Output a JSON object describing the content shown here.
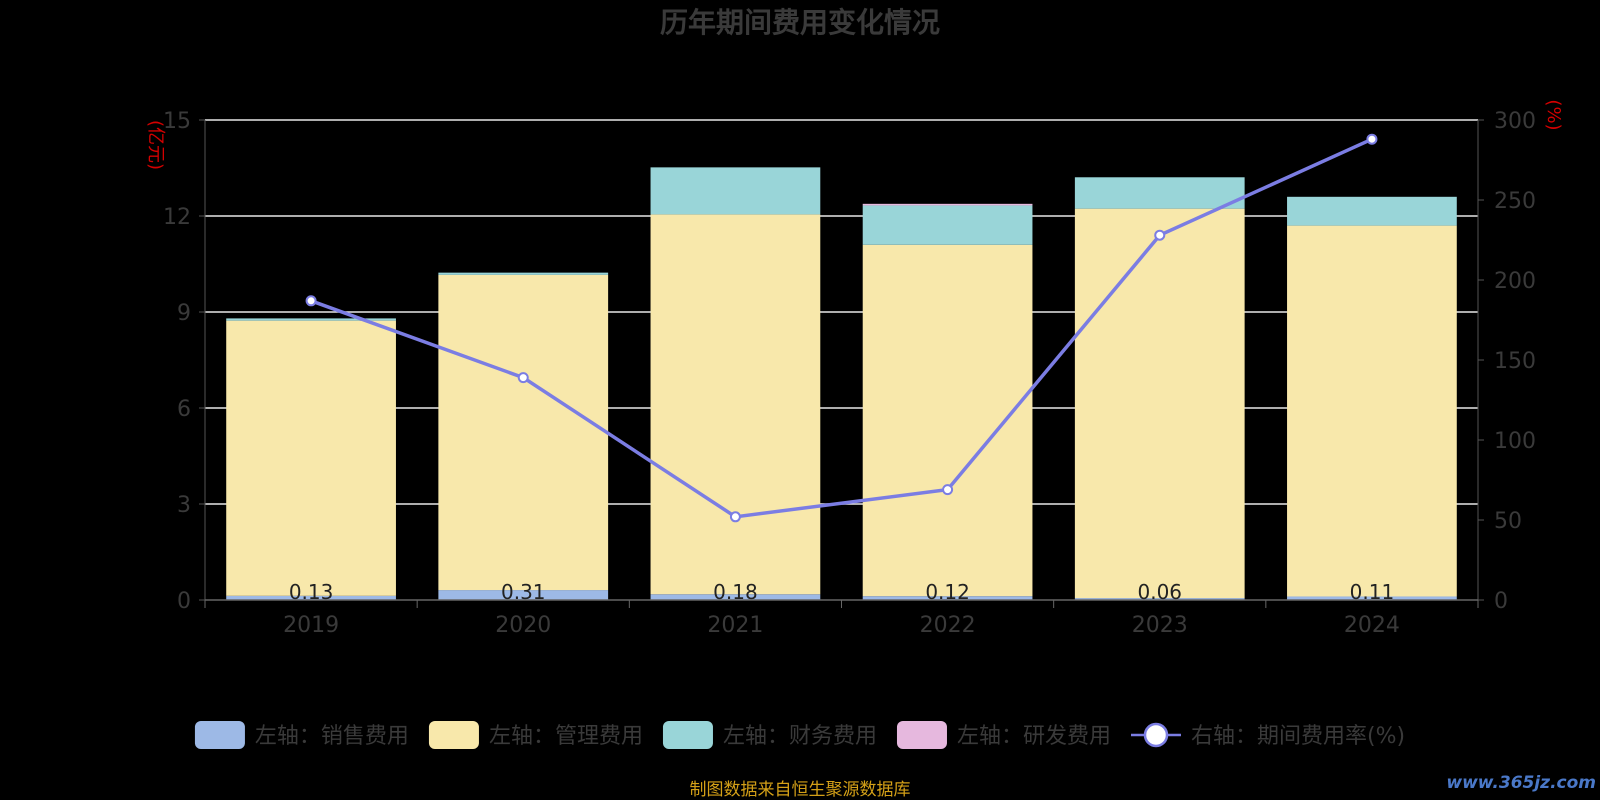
{
  "chart_data": {
    "type": "bar",
    "title": "历年期间费用变化情况",
    "categories": [
      "2019",
      "2020",
      "2021",
      "2022",
      "2023",
      "2024"
    ],
    "left_axis": {
      "unit": "(亿元)",
      "ylim": [
        0,
        15
      ],
      "ticks": [
        "0",
        "3",
        "6",
        "9",
        "12",
        "15"
      ]
    },
    "right_axis": {
      "unit": "(%)",
      "ylim": [
        0,
        300
      ],
      "ticks": [
        "0",
        "50",
        "100",
        "150",
        "200",
        "250",
        "300"
      ]
    },
    "series": [
      {
        "name": "左轴：销售费用",
        "kind": "bar",
        "stack": "left",
        "color": "#9db9e6",
        "values": [
          0.13,
          0.31,
          0.18,
          0.12,
          0.06,
          0.11
        ],
        "labels": [
          "0.13",
          "0.31",
          "0.18",
          "0.12",
          "0.06",
          "0.11"
        ]
      },
      {
        "name": "左轴：管理费用",
        "kind": "bar",
        "stack": "left",
        "color": "#f8e8ab",
        "values": [
          8.6,
          9.85,
          11.87,
          10.98,
          12.17,
          11.59
        ]
      },
      {
        "name": "左轴：财务费用",
        "kind": "bar",
        "stack": "left",
        "color": "#99d5d8",
        "values": [
          0.07,
          0.07,
          1.47,
          1.23,
          0.98,
          0.9
        ]
      },
      {
        "name": "左轴：研发费用",
        "kind": "bar",
        "stack": "left",
        "color": "#e6b8de",
        "values": [
          0,
          0,
          0,
          0.05,
          0,
          0
        ]
      },
      {
        "name": "右轴：期间费用率(%)",
        "kind": "line",
        "axis": "right",
        "color": "#7b7de3",
        "values": [
          187,
          139,
          52,
          69,
          228,
          288
        ]
      }
    ],
    "grid": true,
    "legend_position": "bottom"
  },
  "footer": "制图数据来自恒生聚源数据库",
  "watermark": "www.365jz.com"
}
